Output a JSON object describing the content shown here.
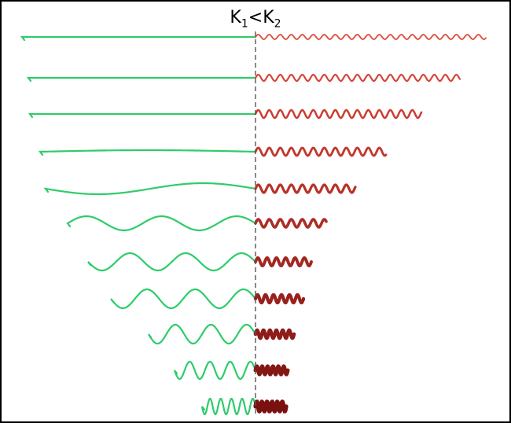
{
  "title": {
    "k1": "K",
    "k1_sub": "1",
    "relation": "<",
    "k2": "K",
    "k2_sub": "2"
  },
  "colors": {
    "left_wave": "#2ecc6a",
    "right_wave_start": "#e04a3a",
    "right_wave_end": "#7a1010",
    "divider": "#555555"
  },
  "rows": [
    {
      "left_amp": 0,
      "left_cycles": 0,
      "right_amp": 3,
      "right_cycles": 18
    },
    {
      "left_amp": 0,
      "left_cycles": 0,
      "right_amp": 4,
      "right_cycles": 18
    },
    {
      "left_amp": 0,
      "left_cycles": 0,
      "right_amp": 5,
      "right_cycles": 18
    },
    {
      "left_amp": 2,
      "left_cycles": 0.5,
      "right_amp": 5,
      "right_cycles": 18
    },
    {
      "left_amp": 7,
      "left_cycles": 1,
      "right_amp": 5,
      "right_cycles": 18
    },
    {
      "left_amp": 9,
      "left_cycles": 2.5,
      "right_amp": 5,
      "right_cycles": 18
    },
    {
      "left_amp": 11,
      "left_cycles": 3,
      "right_amp": 5,
      "right_cycles": 18
    },
    {
      "left_amp": 12,
      "left_cycles": 3,
      "right_amp": 5,
      "right_cycles": 18
    },
    {
      "left_amp": 12,
      "left_cycles": 3,
      "right_amp": 5,
      "right_cycles": 18
    },
    {
      "left_amp": 11,
      "left_cycles": 4,
      "right_amp": 5,
      "right_cycles": 18
    },
    {
      "left_amp": 10,
      "left_cycles": 5,
      "right_amp": 6,
      "right_cycles": 18
    }
  ]
}
